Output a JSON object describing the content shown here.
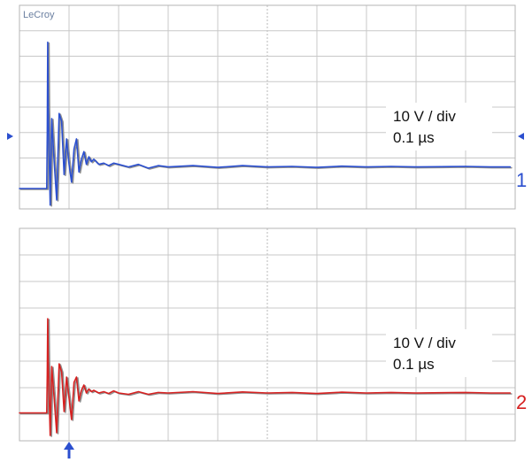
{
  "logo": "LeCroy",
  "chart_data": [
    {
      "type": "line",
      "channel": "1",
      "volts_per_div": "10 V / div",
      "time_per_div": "0.1 µs",
      "x_divisions": 10,
      "y_divisions": 8,
      "colors": {
        "primary": "#2b4fcf",
        "gray": "#8f8f8f"
      },
      "series": [
        {
          "x": [
            0,
            0.55,
            0.56,
            0.57,
            0.58,
            0.62,
            0.65,
            0.7,
            0.75,
            0.8,
            0.85,
            0.9,
            0.95,
            1.0,
            1.05,
            1.1,
            1.15,
            1.2,
            1.25,
            1.3,
            1.35,
            1.4,
            1.45,
            1.5,
            1.6,
            1.7,
            1.8,
            1.9,
            2.0,
            2.2,
            2.4,
            2.6,
            2.8,
            3.0,
            3.5,
            4.0,
            4.5,
            5.0,
            5.5,
            6.0,
            6.5,
            7.0,
            7.5,
            8.0,
            8.5,
            9.0,
            9.5,
            9.9
          ],
          "y": [
            0.05,
            0.05,
            2.2,
            5.8,
            3.2,
            -0.6,
            2.8,
            1.1,
            -0.4,
            3.0,
            2.7,
            0.6,
            2.0,
            1.0,
            0.3,
            1.6,
            2.0,
            0.7,
            1.2,
            1.5,
            1.0,
            1.3,
            1.1,
            1.2,
            1.0,
            1.05,
            0.95,
            1.05,
            1.0,
            0.9,
            1.0,
            0.85,
            0.95,
            0.9,
            0.95,
            0.88,
            0.95,
            0.9,
            0.92,
            0.88,
            0.93,
            0.9,
            0.92,
            0.9,
            0.91,
            0.92,
            0.9,
            0.9
          ]
        }
      ]
    },
    {
      "type": "line",
      "channel": "2",
      "volts_per_div": "10 V / div",
      "time_per_div": "0.1 µs",
      "x_divisions": 10,
      "y_divisions": 8,
      "colors": {
        "primary": "#d62020",
        "gray": "#8f8f8f"
      },
      "series": [
        {
          "x": [
            0,
            0.55,
            0.56,
            0.57,
            0.58,
            0.62,
            0.65,
            0.7,
            0.75,
            0.8,
            0.85,
            0.9,
            0.95,
            1.0,
            1.05,
            1.1,
            1.15,
            1.2,
            1.25,
            1.3,
            1.35,
            1.4,
            1.45,
            1.5,
            1.6,
            1.7,
            1.8,
            1.9,
            2.0,
            2.2,
            2.4,
            2.6,
            2.8,
            3.0,
            3.5,
            4.0,
            4.5,
            5.0,
            5.5,
            6.0,
            6.5,
            7.0,
            7.5,
            8.0,
            8.5,
            9.0,
            9.5,
            9.9
          ],
          "y": [
            0.05,
            0.05,
            1.5,
            3.6,
            2.0,
            -0.8,
            1.8,
            0.6,
            -0.7,
            1.9,
            1.6,
            0.1,
            1.4,
            0.6,
            -0.2,
            1.2,
            1.4,
            0.5,
            0.9,
            1.1,
            0.8,
            0.95,
            0.85,
            0.9,
            0.8,
            0.85,
            0.78,
            0.88,
            0.8,
            0.75,
            0.85,
            0.75,
            0.82,
            0.8,
            0.85,
            0.78,
            0.84,
            0.8,
            0.82,
            0.78,
            0.83,
            0.8,
            0.82,
            0.8,
            0.81,
            0.82,
            0.8,
            0.8
          ]
        }
      ]
    }
  ]
}
